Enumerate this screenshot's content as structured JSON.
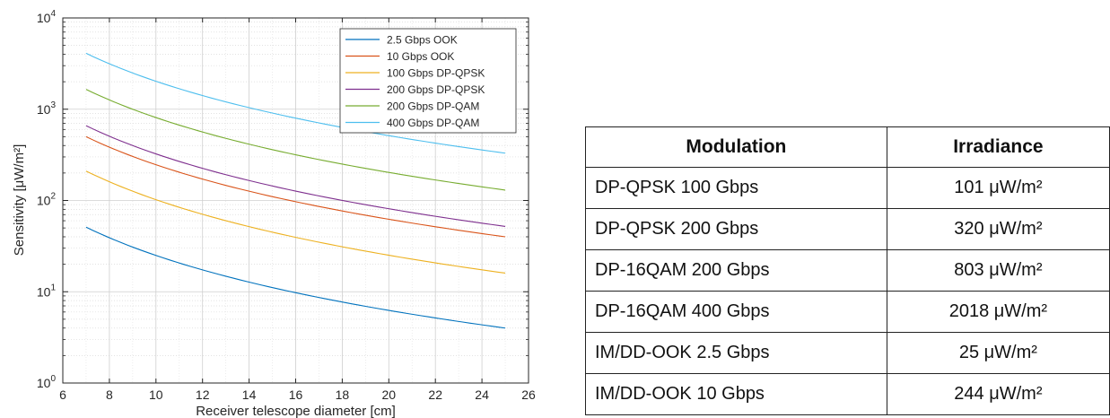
{
  "chart_data": {
    "type": "line",
    "xlabel": "Receiver telescope diameter [cm]",
    "ylabel": "Sensitivity [μW/m²]",
    "y_scale": "log",
    "xlim": [
      6,
      26
    ],
    "ylim": [
      1,
      10000
    ],
    "x_ticks": [
      "6",
      "8",
      "10",
      "12",
      "14",
      "16",
      "18",
      "20",
      "22",
      "24",
      "26"
    ],
    "y_ticks": [
      {
        "base": "10",
        "exp": "0"
      },
      {
        "base": "10",
        "exp": "1"
      },
      {
        "base": "10",
        "exp": "2"
      },
      {
        "base": "10",
        "exp": "3"
      },
      {
        "base": "10",
        "exp": "4"
      }
    ],
    "grid": true,
    "legend_position": "top-right",
    "x": [
      7,
      25
    ],
    "series": [
      {
        "name": "2.5 Gbps OOK",
        "color": "#0072BD",
        "y_start": 51,
        "y_end": 4
      },
      {
        "name": "10 Gbps OOK",
        "color": "#D95319",
        "y_start": 500,
        "y_end": 40
      },
      {
        "name": "100 Gbps DP-QPSK",
        "color": "#EDB120",
        "y_start": 210,
        "y_end": 16
      },
      {
        "name": "200 Gbps DP-QPSK",
        "color": "#7E2F8E",
        "y_start": 660,
        "y_end": 52
      },
      {
        "name": "200 Gbps DP-QAM",
        "color": "#77AC30",
        "y_start": 1650,
        "y_end": 130
      },
      {
        "name": "400 Gbps DP-QAM",
        "color": "#4DBEEE",
        "y_start": 4100,
        "y_end": 330
      }
    ]
  },
  "table": {
    "headers": [
      "Modulation",
      "Irradiance"
    ],
    "rows": [
      {
        "modulation": "DP-QPSK 100 Gbps",
        "irradiance": "101 μW/m²"
      },
      {
        "modulation": "DP-QPSK 200 Gbps",
        "irradiance": "320 μW/m²"
      },
      {
        "modulation": "DP-16QAM 200 Gbps",
        "irradiance": "803 μW/m²"
      },
      {
        "modulation": "DP-16QAM 400 Gbps",
        "irradiance": "2018 μW/m²"
      },
      {
        "modulation": "IM/DD-OOK 2.5 Gbps",
        "irradiance": "25 μW/m²"
      },
      {
        "modulation": "IM/DD-OOK 10 Gbps",
        "irradiance": "244 μW/m²"
      }
    ]
  }
}
